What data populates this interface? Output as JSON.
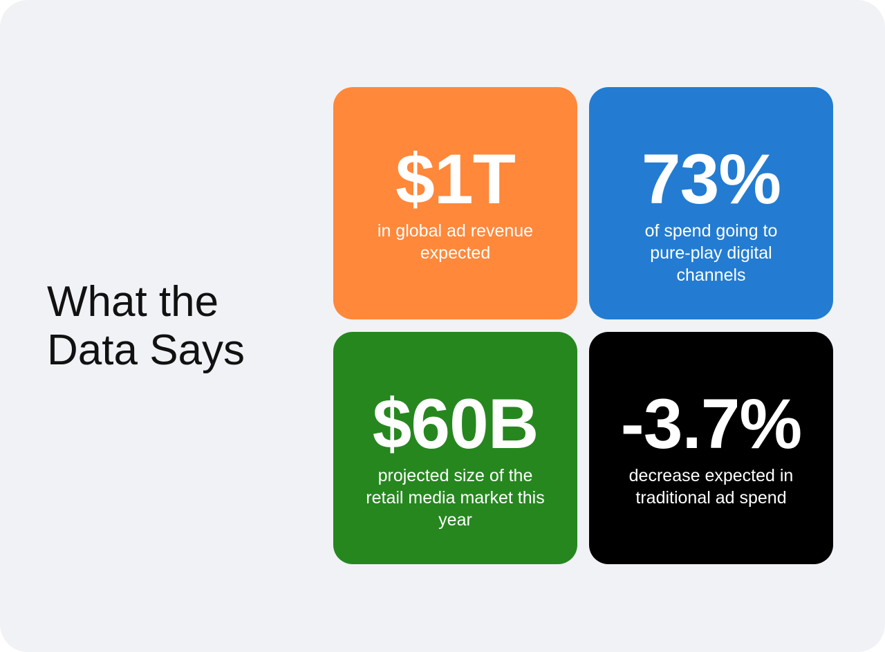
{
  "heading": {
    "line1": "What the",
    "line2": "Data Says"
  },
  "stats": [
    {
      "value": "$1T",
      "description": "in global ad revenue expected",
      "color": "#FF883B"
    },
    {
      "value": "73%",
      "description": "of spend going to pure-play digital channels",
      "color": "#237CD1"
    },
    {
      "value": "$60B",
      "description": "projected size of the retail media market this year",
      "color": "#26871F"
    },
    {
      "value": "-3.7%",
      "description": "decrease expected in traditional ad spend",
      "color": "#000000"
    }
  ]
}
